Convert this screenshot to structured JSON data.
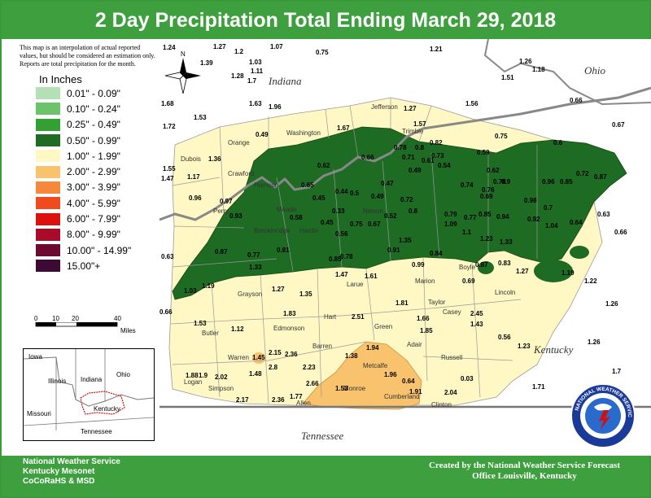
{
  "title": "2 Day Precipitation Total Ending March 29, 2018",
  "legend": {
    "note": "This map is an interpolation of actual reported values, but should be considered an estimation only. Reports are total precipitation for the month.",
    "title": "In Inches",
    "items": [
      {
        "label": "0.01\" - 0.09\"",
        "color": "#b5e0b5"
      },
      {
        "label": "0.10\" - 0.24\"",
        "color": "#6cc36c"
      },
      {
        "label": "0.25\" - 0.49\"",
        "color": "#32a032"
      },
      {
        "label": "0.50\" - 0.99\"",
        "color": "#1e6b24"
      },
      {
        "label": "1.00\" - 1.99\"",
        "color": "#fff8c4"
      },
      {
        "label": "2.00\" - 2.99\"",
        "color": "#f8c36c"
      },
      {
        "label": "3.00\" - 3.99\"",
        "color": "#f5883a"
      },
      {
        "label": "4.00\" - 5.99\"",
        "color": "#f04a1e"
      },
      {
        "label": "6.00\" - 7.99\"",
        "color": "#dd1010"
      },
      {
        "label": "8.00\" - 9.99\"",
        "color": "#a80c2a"
      },
      {
        "label": "10.00\" - 14.99\"",
        "color": "#6c0a30"
      },
      {
        "label": "15.00\"+",
        "color": "#3c0a34"
      }
    ]
  },
  "scale": {
    "ticks": [
      "0",
      "10",
      "20",
      "40"
    ],
    "unit": "Miles"
  },
  "north_label": "N",
  "states": {
    "indiana": "Indiana",
    "ohio": "Ohio",
    "kentucky": "Kentucky",
    "tennessee": "Tennessee"
  },
  "inset": {
    "iowa": "Iowa",
    "illinois": "Illinois",
    "indiana": "Indiana",
    "ohio": "Ohio",
    "missouri": "Missouri",
    "kentucky": "Kentucky",
    "tennessee": "Tennessee"
  },
  "counties": [
    "Orange",
    "Washington",
    "Jefferson",
    "Trimble",
    "Dubois",
    "Crawford",
    "Harrison",
    "Perry",
    "Breckinridge",
    "Meade",
    "Hardin",
    "Nelson",
    "Grayson",
    "Larue",
    "Marion",
    "Taylor",
    "Boyle",
    "Lincoln",
    "Casey",
    "Hart",
    "Edmonson",
    "Butler",
    "Green",
    "Adair",
    "Warren",
    "Barren",
    "Metcalfe",
    "Russell",
    "Logan",
    "Simpson",
    "Allen",
    "Monroe",
    "Cumberland",
    "Clinton"
  ],
  "values": [
    "1.24",
    "1.27",
    "1.07",
    "0.75",
    "1.21",
    "1.2",
    "1.39",
    "1.03",
    "1.11",
    "1.28",
    "1.7",
    "1.26",
    "1.18",
    "1.51",
    "0.66",
    "0.67",
    "1.68",
    "1.53",
    "1.63",
    "1.96",
    "1.27",
    "1.56",
    "1.72",
    "1.67",
    "1.57",
    "0.75",
    "0.59",
    "1.36",
    "1.55",
    "1.47",
    "1.17",
    "0.96",
    "0.49",
    "0.62",
    "0.66",
    "0.78",
    "0.8",
    "0.82",
    "0.71",
    "0.61",
    "0.49",
    "0.73",
    "0.54",
    "0.62",
    "0.9",
    "0.96",
    "0.72",
    "0.87",
    "0.85",
    "0.6",
    "0.65",
    "0.44",
    "0.45",
    "0.33",
    "0.5",
    "0.47",
    "0.49",
    "0.72",
    "0.74",
    "0.76",
    "0.78",
    "0.69",
    "0.7",
    "0.92",
    "0.98",
    "0.97",
    "0.93",
    "0.58",
    "0.45",
    "0.56",
    "0.75",
    "0.67",
    "0.52",
    "0.8",
    "0.79",
    "0.77",
    "0.85",
    "0.94",
    "1.1",
    "1.23",
    "1.04",
    "0.63",
    "0.64",
    "0.66",
    "0.63",
    "0.87",
    "0.77",
    "0.81",
    "0.85",
    "0.78",
    "0.91",
    "1.35",
    "1.09",
    "1.33",
    "0.84",
    "0.99",
    "0.87",
    "0.83",
    "1.27",
    "1.19",
    "1.22",
    "1.47",
    "0.69",
    "0.66",
    "1.03",
    "1.19",
    "1.33",
    "1.27",
    "1.35",
    "1.61",
    "1.81",
    "1.66",
    "2.45",
    "1.43",
    "1.26",
    "1.53",
    "1.12",
    "1.83",
    "2.51",
    "1.85",
    "0.56",
    "1.23",
    "1.26",
    "1.45",
    "2.15",
    "2.36",
    "1.38",
    "1.94",
    "1.48",
    "2.8",
    "2.23",
    "1.96",
    "0.64",
    "0.03",
    "1.71",
    "1.7",
    "1.88",
    "1.9",
    "2.02",
    "2.66",
    "1.77",
    "1.53",
    "1.91",
    "2.04",
    "2.17",
    "2.36"
  ],
  "footer": {
    "left": [
      "National Weather Service",
      "Kentucky Mesonet",
      "CoCoRaHS & MSD"
    ],
    "right": [
      "Created by the National Weather Service Forecast",
      "Office Louisville, Kentucky"
    ]
  },
  "logo_text": "NATIONAL WEATHER SERVICE"
}
